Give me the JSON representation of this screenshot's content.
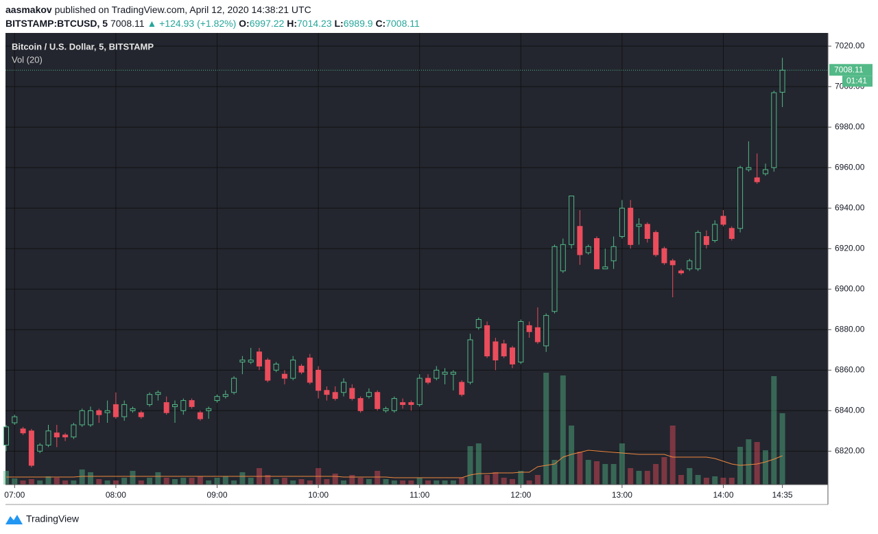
{
  "header": {
    "author": "aasmakov",
    "published": "published on TradingView.com, April 12, 2020 14:38:21 UTC",
    "symbol": "BITSTAMP:BTCUSD, 5",
    "change": "▲ +124.93 (+1.82%)",
    "ohlc_labels": [
      "O:",
      "H:",
      "L:",
      "C:"
    ],
    "countdown": "01:41"
  },
  "footer": {
    "brand": "TradingView"
  },
  "chart_data": {
    "type": "candlestick",
    "title": "Bitcoin / U.S. Dollar, 5, BITSTAMP",
    "volume_label": "Vol (20)",
    "up_color": "#53b987",
    "down_color": "#eb4d5c",
    "ma_color": "#f0883e",
    "grid": true,
    "x": [
      "06:55",
      "07:00",
      "07:05",
      "07:10",
      "07:15",
      "07:20",
      "07:25",
      "07:30",
      "07:35",
      "07:40",
      "07:45",
      "07:50",
      "07:55",
      "08:00",
      "08:05",
      "08:10",
      "08:15",
      "08:20",
      "08:25",
      "08:30",
      "08:35",
      "08:40",
      "08:45",
      "08:50",
      "08:55",
      "09:00",
      "09:05",
      "09:10",
      "09:15",
      "09:20",
      "09:25",
      "09:30",
      "09:35",
      "09:40",
      "09:45",
      "09:50",
      "09:55",
      "10:00",
      "10:05",
      "10:10",
      "10:15",
      "10:20",
      "10:25",
      "10:30",
      "10:35",
      "10:40",
      "10:45",
      "10:50",
      "10:55",
      "11:00",
      "11:05",
      "11:10",
      "11:15",
      "11:20",
      "11:25",
      "11:30",
      "11:35",
      "11:40",
      "11:45",
      "11:50",
      "11:55",
      "12:00",
      "12:05",
      "12:10",
      "12:15",
      "12:20",
      "12:25",
      "12:30",
      "12:35",
      "12:40",
      "12:45",
      "12:50",
      "12:55",
      "13:00",
      "13:05",
      "13:10",
      "13:15",
      "13:20",
      "13:25",
      "13:30",
      "13:35",
      "13:40",
      "13:45",
      "13:50",
      "13:55",
      "14:00",
      "14:05",
      "14:10",
      "14:15",
      "14:20",
      "14:25",
      "14:30",
      "14:35"
    ],
    "open": [
      6823,
      6834,
      6831,
      6830,
      6820,
      6823,
      6829,
      6828,
      6827,
      6833,
      6833,
      6840,
      6839,
      6843,
      6837,
      6840,
      6839,
      6843,
      6848,
      6844,
      6842,
      6840,
      6845,
      6839,
      6840,
      6845,
      6847,
      6849,
      6864,
      6864,
      6869,
      6865,
      6860,
      6858,
      6856,
      6862,
      6866,
      6860,
      6850,
      6849,
      6849,
      6851,
      6846,
      6847,
      6849,
      6840,
      6840,
      6844,
      6844,
      6843,
      6856,
      6856,
      6858,
      6858,
      6854,
      6854,
      6881,
      6882,
      6874,
      6873,
      6871,
      6864,
      6882,
      6881,
      6872,
      6889,
      6909,
      6922,
      6931,
      6918,
      6925,
      6910,
      6914,
      6926,
      6940,
      6931,
      6932,
      6928,
      6920,
      6914,
      6909,
      6910,
      6910,
      6926,
      6924,
      6936,
      6930,
      6930,
      6959,
      6955,
      6957,
      6960,
      6997.22
    ],
    "high": [
      6833,
      6838,
      6832,
      6831,
      6824,
      6833,
      6833,
      6829,
      6834,
      6841,
      6842,
      6841,
      6845,
      6849,
      6845,
      6842,
      6840,
      6849,
      6850,
      6847,
      6845,
      6846,
      6846,
      6840,
      6842,
      6848,
      6850,
      6857,
      6867,
      6871,
      6871,
      6866,
      6864,
      6860,
      6867,
      6863,
      6868,
      6862,
      6852,
      6852,
      6856,
      6853,
      6847,
      6851,
      6850,
      6842,
      6847,
      6846,
      6845,
      6858,
      6858,
      6862,
      6861,
      6860,
      6855,
      6878,
      6886,
      6884,
      6876,
      6875,
      6872,
      6885,
      6884,
      6891,
      6888,
      6922,
      6925,
      6946,
      6939,
      6922,
      6926,
      6920,
      6926,
      6944,
      6944,
      6935,
      6933,
      6929,
      6921,
      6915,
      6910,
      6915,
      6929,
      6929,
      6934,
      6939,
      6931,
      6961,
      6973,
      6967,
      6962,
      6998,
      7014.23
    ],
    "low": [
      6820,
      6833,
      6828,
      6812,
      6819,
      6822,
      6822,
      6825,
      6826,
      6832,
      6832,
      6834,
      6834,
      6836,
      6835,
      6839,
      6836,
      6842,
      6845,
      6838,
      6834,
      6838,
      6841,
      6835,
      6836,
      6844,
      6846,
      6848,
      6858,
      6863,
      6860,
      6854,
      6859,
      6853,
      6855,
      6858,
      6853,
      6846,
      6845,
      6845,
      6847,
      6845,
      6839,
      6846,
      6840,
      6839,
      6839,
      6841,
      6840,
      6842,
      6853,
      6855,
      6853,
      6850,
      6847,
      6853,
      6880,
      6866,
      6860,
      6866,
      6861,
      6863,
      6876,
      6873,
      6869,
      6888,
      6908,
      6920,
      6912,
      6917,
      6910,
      6910,
      6910,
      6925,
      6920,
      6922,
      6923,
      6916,
      6912,
      6896,
      6907,
      6909,
      6909,
      6920,
      6923,
      6931,
      6924,
      6928,
      6958,
      6952,
      6956,
      6958,
      6989.9
    ],
    "close": [
      6832,
      6837,
      6829,
      6813,
      6823,
      6830,
      6827,
      6827,
      6833,
      6840,
      6840,
      6838,
      6840,
      6837,
      6843,
      6841,
      6837,
      6848,
      6849,
      6839,
      6843,
      6845,
      6842,
      6836,
      6841,
      6847,
      6848,
      6856,
      6865,
      6865,
      6862,
      6855,
      6863,
      6856,
      6865,
      6859,
      6854,
      6850,
      6848,
      6846,
      6854,
      6846,
      6840,
      6849,
      6841,
      6841,
      6846,
      6843,
      6843,
      6856,
      6854,
      6860,
      6859,
      6859,
      6848,
      6875,
      6885,
      6867,
      6865,
      6867,
      6863,
      6884,
      6879,
      6874,
      6887,
      6921,
      6922,
      6946,
      6917,
      6921,
      6910,
      6911,
      6921,
      6940,
      6922,
      6932,
      6925,
      6917,
      6913,
      6912,
      6908,
      6914,
      6928,
      6922,
      6932,
      6932,
      6925,
      6960,
      6960,
      6953,
      6959,
      6997,
      7008.11
    ],
    "volume": [
      20,
      9,
      6,
      8,
      6,
      12,
      10,
      6,
      6,
      22,
      18,
      8,
      6,
      6,
      10,
      20,
      6,
      10,
      18,
      10,
      8,
      10,
      10,
      12,
      6,
      10,
      12,
      6,
      18,
      10,
      24,
      14,
      8,
      10,
      6,
      8,
      6,
      24,
      8,
      16,
      6,
      14,
      10,
      8,
      20,
      8,
      6,
      6,
      6,
      10,
      6,
      6,
      6,
      6,
      10,
      56,
      60,
      14,
      18,
      10,
      8,
      20,
      6,
      14,
      163,
      36,
      159,
      86,
      48,
      36,
      34,
      30,
      30,
      60,
      24,
      20,
      20,
      30,
      40,
      86,
      14,
      24,
      14,
      10,
      12,
      10,
      10,
      55,
      66,
      62,
      50,
      158,
      104
    ],
    "volume_ma": [
      11,
      11,
      11,
      11,
      11,
      11,
      11,
      11,
      11,
      12,
      12,
      12,
      12,
      12,
      12,
      12,
      12,
      12,
      12,
      12,
      12,
      12,
      12,
      12,
      12,
      12,
      12,
      12,
      12,
      12,
      12,
      12,
      12,
      12,
      12,
      12,
      12,
      12,
      12,
      12,
      11,
      11,
      11,
      11,
      11,
      11,
      10,
      10,
      10,
      10,
      10,
      10,
      10,
      10,
      10,
      14,
      16,
      16,
      17,
      17,
      17,
      18,
      18,
      26,
      28,
      30,
      40,
      44,
      47,
      50,
      49,
      48,
      47,
      46,
      45,
      44,
      44,
      44,
      44,
      40,
      40,
      40,
      40,
      40,
      38,
      34,
      30,
      28,
      29,
      30,
      33,
      37,
      42
    ],
    "ylim": [
      6803.5,
      7026.5
    ],
    "yticks": [
      {
        "value": 6820,
        "label": "6820.00"
      },
      {
        "value": 6840,
        "label": "6840.00"
      },
      {
        "value": 6860,
        "label": "6860.00"
      },
      {
        "value": 6880,
        "label": "6880.00"
      },
      {
        "value": 6900,
        "label": "6900.00"
      },
      {
        "value": 6920,
        "label": "6920.00"
      },
      {
        "value": 6940,
        "label": "6940.00"
      },
      {
        "value": 6960,
        "label": "6960.00"
      },
      {
        "value": 6980,
        "label": "6980.00"
      },
      {
        "value": 7000,
        "label": "7000.00"
      },
      {
        "value": 7020,
        "label": "7020.00"
      }
    ],
    "xticks": [
      "07:00",
      "08:00",
      "09:00",
      "10:00",
      "11:00",
      "12:00",
      "13:00",
      "14:00",
      "14:35"
    ]
  }
}
